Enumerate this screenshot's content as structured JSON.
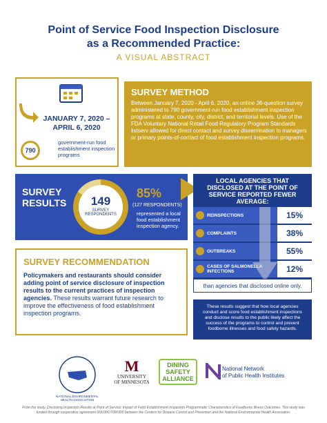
{
  "header": {
    "title_line1": "Point of Service Food Inspection Disclosure",
    "title_line2": "as a Recommended Practice:",
    "subtitle": "A VISUAL ABSTRACT"
  },
  "dates": {
    "range_line1": "JANUARY 7, 2020 –",
    "range_line2": "APRIL 6, 2020",
    "count": "790",
    "count_label": "government-run food establishment inspection programs"
  },
  "survey_method": {
    "title": "SURVEY METHOD",
    "body": "Between January 7, 2020 - April 6, 2020, an online 36-question survey administered to 790 government-run food establishment inspection programs at state, county, city, district, and territorial levels. Use of the FDA Voluntary National Retail Food Regulatory Program Standards listserv allowed for direct contact and survey dissemination to managers or primary points-of-contact of food establishment inspection programs."
  },
  "survey_results": {
    "title_line1": "SURVEY",
    "title_line2": "RESULTS",
    "respondents": "149",
    "respondents_label": "SURVEY RESPONDENTS",
    "percent": "85%",
    "percent_count": "(127 RESPONDENTS)",
    "percent_label": "represented a local food establishment inspection agency."
  },
  "local_agencies": {
    "title": "LOCAL AGENCIES THAT DISCLOSED AT THE POINT OF SERVICE REPORTED FEWER AVERAGE:",
    "rows": [
      {
        "label": "REINSPECTIONS",
        "value": "15%"
      },
      {
        "label": "COMPLAINTS",
        "value": "38%"
      },
      {
        "label": "OUTBREAKS",
        "value": "55%"
      },
      {
        "label": "CASES OF SALMONELLA INFECTIONS",
        "value": "12%"
      }
    ],
    "footer": "than agencies that disclosed online only.",
    "note": "These results suggest that how local agencies conduct and score food establishment inspections and disclose results to the public likely affect the success of the programs to control and prevent foodborne illnesses and food safety hazards."
  },
  "recommendation": {
    "title": "SURVEY RECOMMENDATION",
    "bold_text": "Policymakers and restaurants should consider adding point of service disclosure of inspection results to the current practices of inspection agencies.",
    "text": "These results warrant future research to improve the effectiveness of food establishment inspection programs."
  },
  "logos": {
    "neha": "NATIONAL ENVIRONMENTAL HEALTH ASSOCIATION",
    "umn_line1": "UNIVERSITY",
    "umn_line2": "OF MINNESOTA",
    "dsa_line1": "DINING",
    "dsa_line2": "SAFETY",
    "dsa_line3": "ALLIANCE",
    "nnphi_line1": "National Network",
    "nnphi_line2": "of Public Health Institutes"
  },
  "footnote": "From the study, Disclosing Inspection Results at Point of Service: Impact of Food Establishment Inspection Programmatic Characteristics of Foodborne Illness Outcomes. This study was funded through cooperative agreement 6NU38OT000300 between the Centers for Disease Control and Prevention and the National Environmental Health Association."
}
